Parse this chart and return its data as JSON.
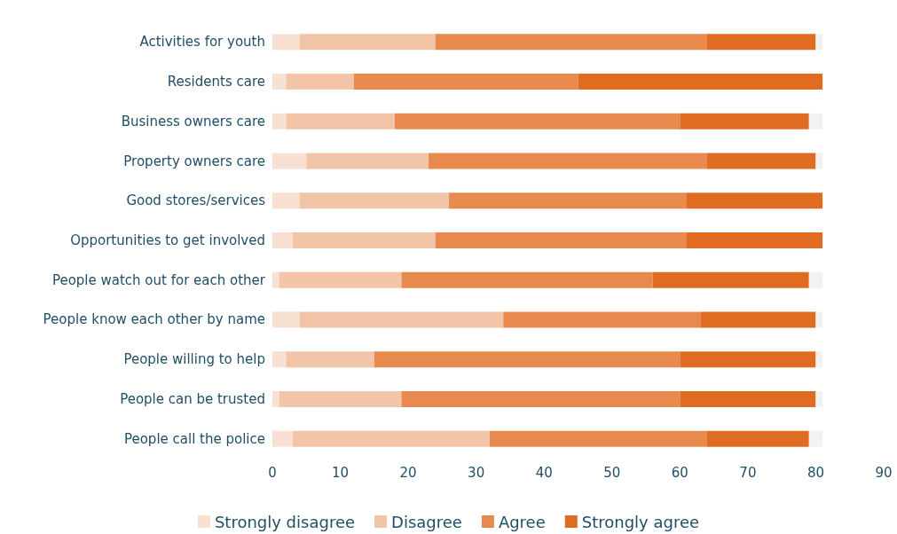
{
  "chart_data": {
    "type": "bar",
    "orientation": "horizontal",
    "stacked": true,
    "categories": [
      "Activities for youth",
      "Residents care",
      "Business owners care",
      "Property owners care",
      "Good stores/services",
      "Opportunities to get involved",
      "People watch out for each other",
      "People know each other by name",
      "People willing to help",
      "People can be trusted",
      "People call the police"
    ],
    "series": [
      {
        "name": "Strongly disagree",
        "color": "#f8e0d3",
        "values": [
          4,
          2,
          2,
          5,
          4,
          3,
          1,
          4,
          2,
          1,
          3
        ]
      },
      {
        "name": "Disagree",
        "color": "#f2c4a8",
        "values": [
          20,
          10,
          16,
          18,
          22,
          21,
          18,
          30,
          13,
          18,
          29
        ]
      },
      {
        "name": "Agree",
        "color": "#e8894e",
        "values": [
          40,
          33,
          42,
          41,
          35,
          37,
          37,
          29,
          45,
          41,
          32
        ]
      },
      {
        "name": "Strongly agree",
        "color": "#e06c22",
        "values": [
          16,
          36,
          19,
          16,
          20,
          20,
          23,
          17,
          20,
          20,
          15
        ]
      },
      {
        "color": "#f2f2f2",
        "values": [
          1,
          0,
          2,
          1,
          0,
          0,
          2,
          1,
          1,
          1,
          2
        ]
      }
    ],
    "xlim": [
      0,
      90
    ],
    "xticks": [
      0,
      10,
      20,
      30,
      40,
      50,
      60,
      70,
      80,
      90
    ],
    "grid": false,
    "legend": "bottom"
  }
}
